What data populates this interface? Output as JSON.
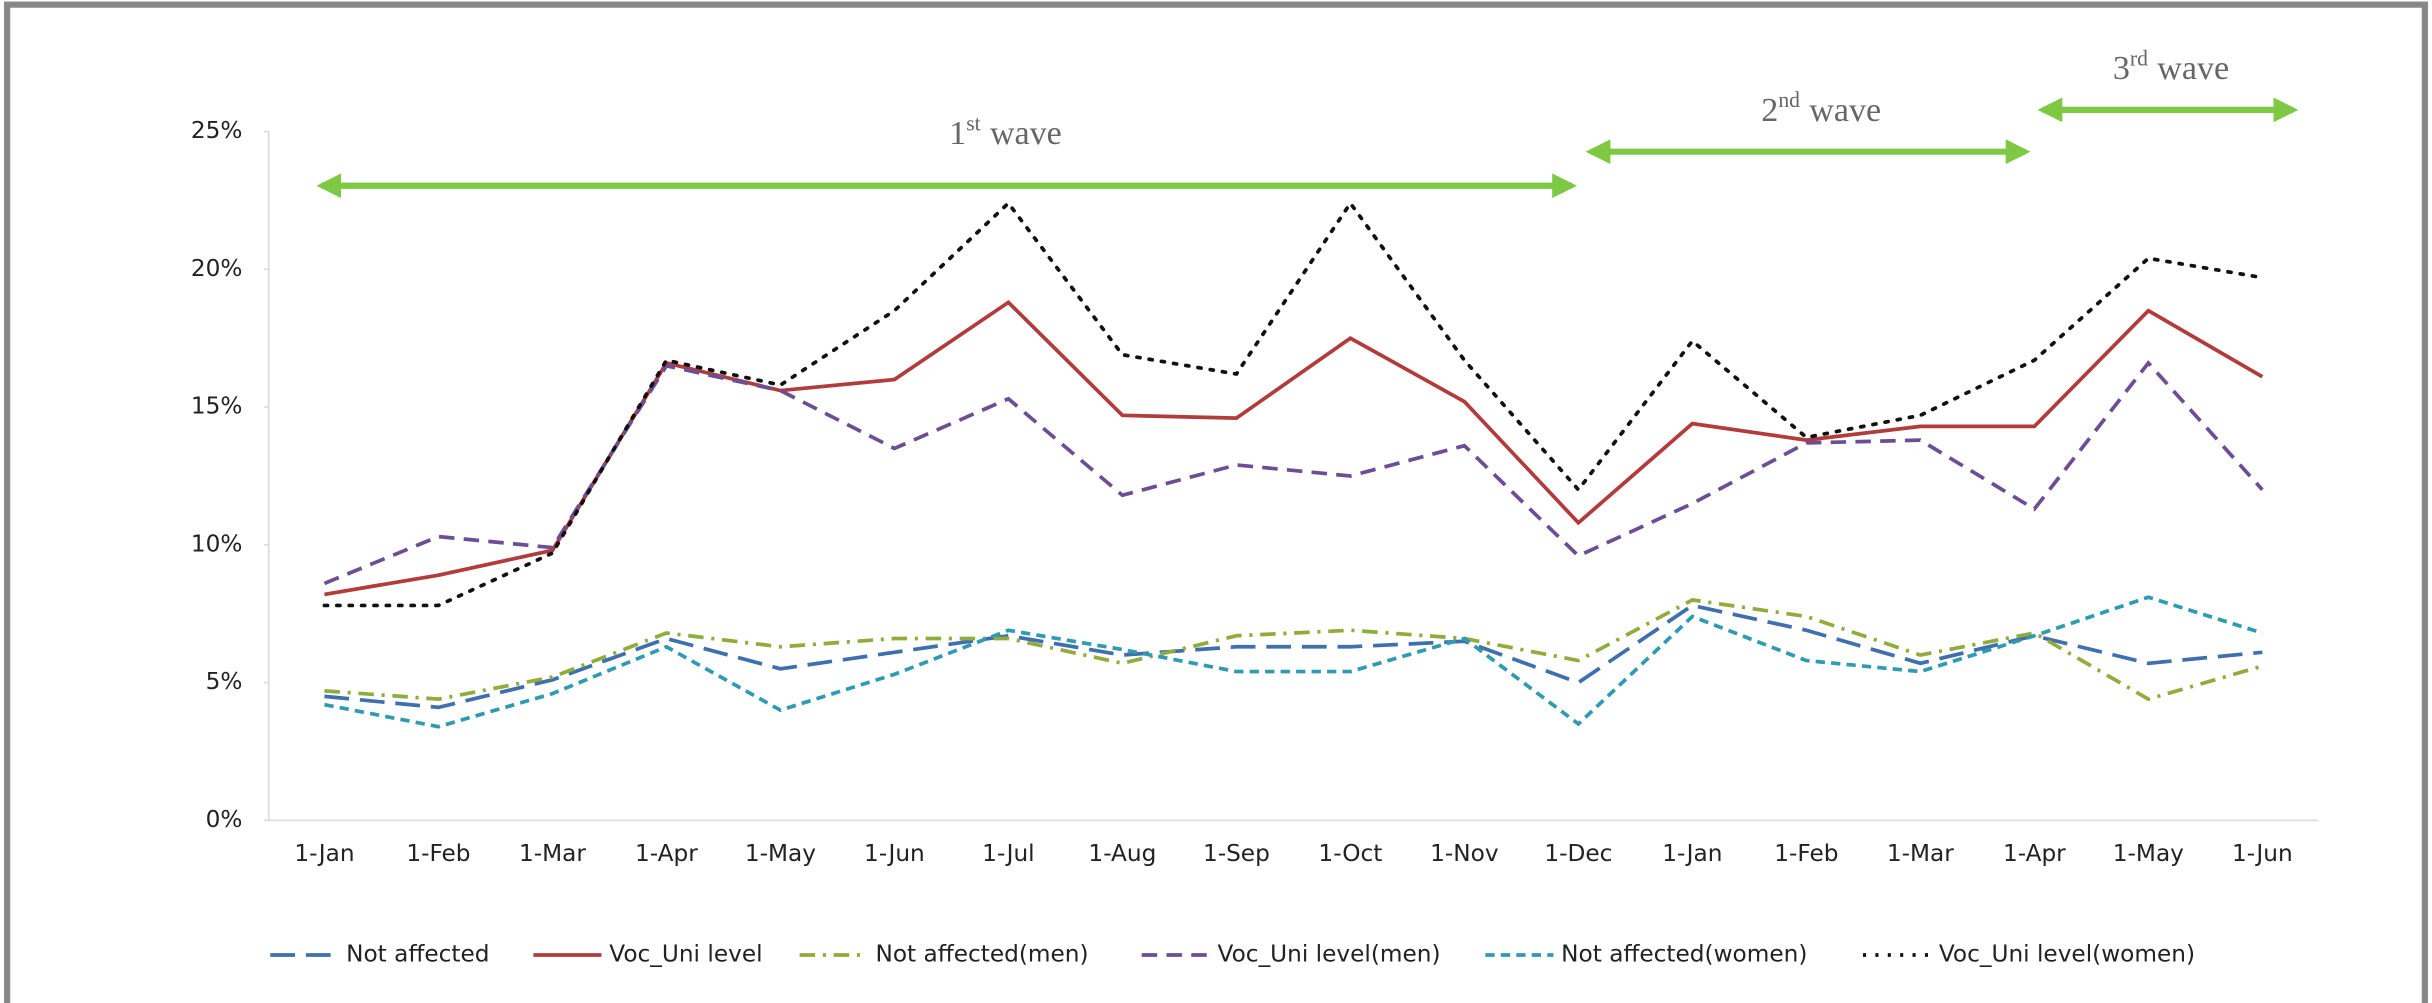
{
  "chart_data": {
    "type": "line",
    "categories": [
      "1-Jan",
      "1-Feb",
      "1-Mar",
      "1-Apr",
      "1-May",
      "1-Jun",
      "1-Jul",
      "1-Aug",
      "1-Sep",
      "1-Oct",
      "1-Nov",
      "1-Dec",
      "1-Jan",
      "1-Feb",
      "1-Mar",
      "1-Apr",
      "1-May",
      "1-Jun"
    ],
    "ylim": [
      0,
      25
    ],
    "yticks": [
      {
        "value": 0,
        "label": "0%"
      },
      {
        "value": 5,
        "label": "5%"
      },
      {
        "value": 10,
        "label": "10%"
      },
      {
        "value": 15,
        "label": "15%"
      },
      {
        "value": 20,
        "label": "20%"
      },
      {
        "value": 25,
        "label": "25%"
      }
    ],
    "annotations": [
      {
        "number": "1",
        "suffix": "st",
        "text": "wave"
      },
      {
        "number": "2",
        "suffix": "nd",
        "text": "wave"
      },
      {
        "number": "3",
        "suffix": "rd",
        "text": "wave"
      }
    ],
    "legend": "bottom",
    "series": [
      {
        "name": "Not affected",
        "color": "#3f6fae",
        "dash": "long-dash",
        "values": [
          4.5,
          4.1,
          5.1,
          6.6,
          5.5,
          6.1,
          6.7,
          6.0,
          6.3,
          6.3,
          6.5,
          5.0,
          7.8,
          6.9,
          5.7,
          6.7,
          5.7,
          6.1
        ]
      },
      {
        "name": "Voc_Uni level",
        "color": "#b23b3b",
        "dash": "solid",
        "values": [
          8.2,
          8.9,
          9.8,
          16.6,
          15.6,
          16.0,
          18.8,
          14.7,
          14.6,
          17.5,
          15.2,
          10.8,
          14.4,
          13.8,
          14.3,
          14.3,
          18.5,
          16.1
        ]
      },
      {
        "name": "Not affected(men)",
        "color": "#8fac3c",
        "dash": "dash-dot",
        "values": [
          4.7,
          4.4,
          5.2,
          6.8,
          6.3,
          6.6,
          6.6,
          5.7,
          6.7,
          6.9,
          6.6,
          5.8,
          8.0,
          7.4,
          6.0,
          6.8,
          4.4,
          5.6
        ]
      },
      {
        "name": "Voc_Uni level(men)",
        "color": "#6d4d93",
        "dash": "dash",
        "values": [
          8.6,
          10.3,
          9.9,
          16.5,
          15.6,
          13.5,
          15.3,
          11.8,
          12.9,
          12.5,
          13.6,
          9.6,
          11.5,
          13.7,
          13.8,
          11.3,
          16.6,
          12.0
        ]
      },
      {
        "name": "Not affected(women)",
        "color": "#2e9bb3",
        "dash": "short-dash",
        "values": [
          4.2,
          3.4,
          4.6,
          6.3,
          4.0,
          5.3,
          6.9,
          6.2,
          5.4,
          5.4,
          6.6,
          3.5,
          7.4,
          5.8,
          5.4,
          6.7,
          8.1,
          6.8
        ]
      },
      {
        "name": "Voc_Uni level(women)",
        "color": "#111111",
        "dash": "dot",
        "values": [
          7.8,
          7.8,
          9.7,
          16.7,
          15.8,
          18.5,
          22.4,
          16.9,
          16.2,
          22.4,
          16.7,
          12.0,
          17.4,
          13.9,
          14.7,
          16.7,
          20.4,
          19.7
        ]
      }
    ]
  }
}
